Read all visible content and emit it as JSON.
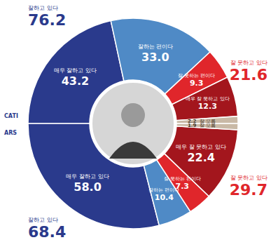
{
  "chart_data": {
    "type": "pie",
    "categories": [
      "매우 잘하고 있다",
      "잘하는 편이다",
      "잘 못하는 편이다",
      "매우 잘 못하고 있다",
      "잘 모름"
    ],
    "colors": [
      "#2a3a8c",
      "#4f8ac6",
      "#e0262b",
      "#a3161d",
      "#c9b9a6"
    ],
    "data_labels": true,
    "series": [
      {
        "name": "CATI",
        "values": [
          43.2,
          33.0,
          9.3,
          12.3,
          2.2
        ],
        "value_labels": [
          "43.2",
          "33.0",
          "9.3",
          "12.3",
          "2.2"
        ]
      },
      {
        "name": "ARS",
        "values": [
          58.0,
          10.4,
          7.3,
          22.4,
          1.9
        ],
        "value_labels": [
          "58.0",
          "10.4",
          "7.3",
          "22.4",
          "1.9"
        ]
      }
    ],
    "annotations": [
      {
        "text": "잘하고 있다",
        "value": 76.2,
        "color": "#2a3a8c"
      },
      {
        "text": "잘 못하고 있다",
        "value": 21.6,
        "color": "#e0262b"
      },
      {
        "text": "잘 못하고 있다",
        "value": 29.7,
        "color": "#e0262b"
      },
      {
        "text": "잘하고 있다",
        "value": 68.4,
        "color": "#2a3a8c"
      }
    ]
  }
}
